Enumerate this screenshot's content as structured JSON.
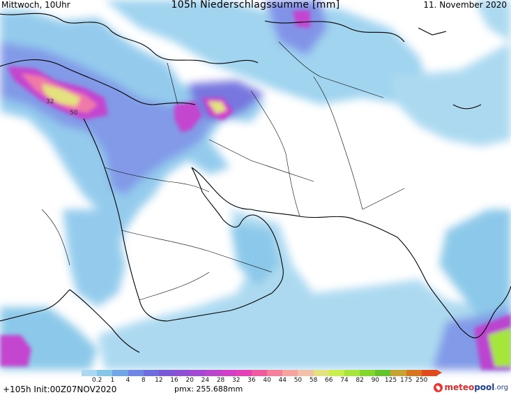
{
  "header": {
    "left": "Mittwoch, 10Uhr",
    "title": "105h Niederschlagssumme [mm]",
    "right": "11. November 2020"
  },
  "legend": {
    "labels": [
      "0.2",
      "1",
      "4",
      "8",
      "12",
      "16",
      "20",
      "24",
      "28",
      "32",
      "36",
      "40",
      "44",
      "50",
      "58",
      "66",
      "74",
      "82",
      "90",
      "125",
      "175",
      "250"
    ],
    "colors": [
      "#a9d8f0",
      "#86c6e8",
      "#6fa6e8",
      "#6f86e6",
      "#6d6ce0",
      "#7a58d8",
      "#8e4fd6",
      "#a348d4",
      "#bb44cf",
      "#d33ec8",
      "#e73fb7",
      "#f25aa0",
      "#f6809a",
      "#f7a39e",
      "#f3c1a8",
      "#e3e27f",
      "#c8ef4e",
      "#a6e63b",
      "#82d72d",
      "#62c42a",
      "#c8a232",
      "#d8761f",
      "#e24a1a"
    ]
  },
  "footer": {
    "left": "+105h Init:00Z07NOV2020",
    "pmx": "pmx: 255.688mm"
  },
  "brand": {
    "part1": "meteo",
    "part2": "pool",
    "part3": ".org"
  },
  "map_labels": {
    "label_a": "32",
    "label_b": "50"
  }
}
